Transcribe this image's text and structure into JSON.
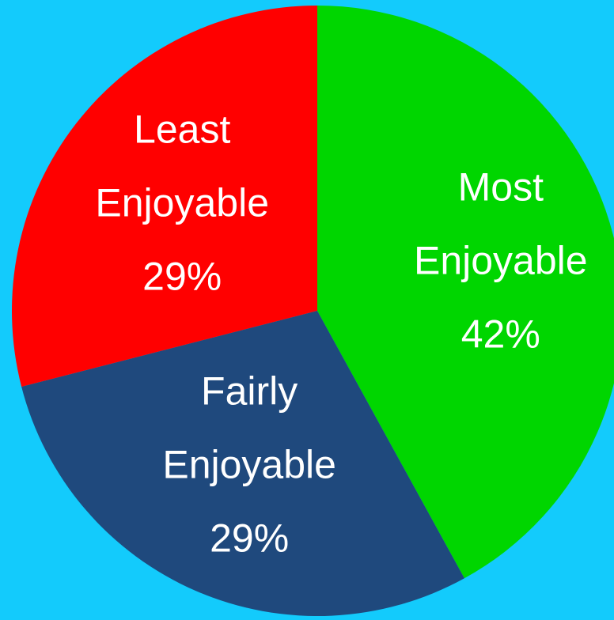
{
  "background_color": "#13CBFC",
  "chart_data": {
    "type": "pie",
    "slices": [
      {
        "label_lines": [
          "Most",
          "Enjoyable",
          "42%"
        ],
        "value": 42,
        "color": "#00D600"
      },
      {
        "label_lines": [
          "Fairly",
          "Enjoyable",
          "29%"
        ],
        "value": 29,
        "color": "#1F497D"
      },
      {
        "label_lines": [
          "Least",
          "Enjoyable",
          "29%"
        ],
        "value": 29,
        "color": "#FF0000"
      }
    ],
    "start_angle_deg": 0,
    "direction": "clockwise",
    "data_labels": "inside"
  }
}
